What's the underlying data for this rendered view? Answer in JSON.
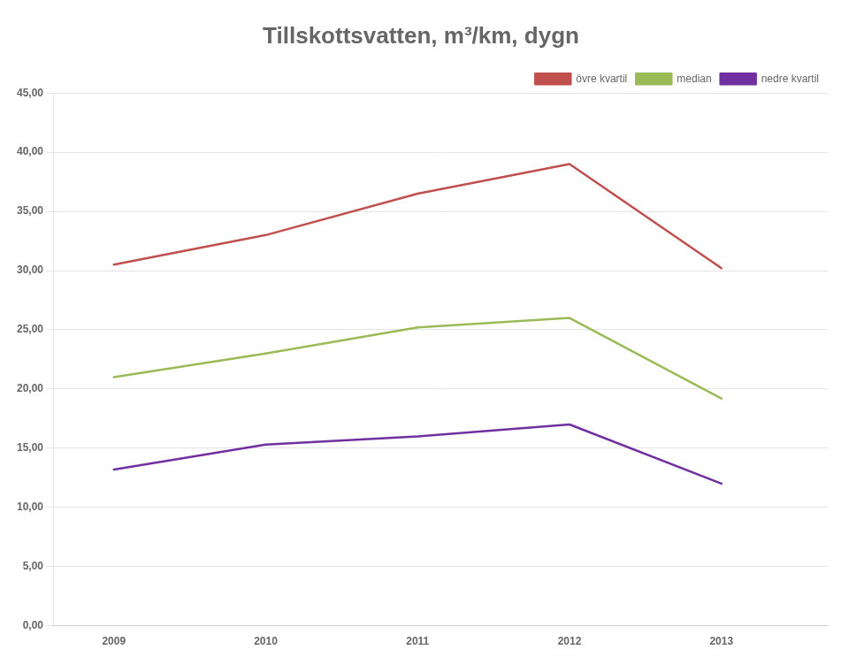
{
  "chart_data": {
    "type": "line",
    "title": "Tillskottsvatten, m³/km, dygn",
    "x": [
      2009,
      2010,
      2011,
      2012,
      2013
    ],
    "series": [
      {
        "name": "övre kvartil",
        "color": "#c0504d",
        "values": [
          30.5,
          33.0,
          36.5,
          39.0,
          30.2
        ]
      },
      {
        "name": "median",
        "color": "#9bbb59",
        "values": [
          21.0,
          23.0,
          25.2,
          26.0,
          19.2
        ]
      },
      {
        "name": "nedre kvartil",
        "color": "#7030a0",
        "values": [
          13.2,
          15.3,
          16.0,
          17.0,
          12.0
        ]
      }
    ],
    "xlim": [
      2008.6,
      2013.7
    ],
    "xticks": [
      2009,
      2010,
      2011,
      2012,
      2013
    ],
    "ylim": [
      0,
      45
    ],
    "yticks": [
      {
        "value": 0,
        "label": "0,00"
      },
      {
        "value": 5,
        "label": "5,00"
      },
      {
        "value": 10,
        "label": "10,00"
      },
      {
        "value": 15,
        "label": "15,00"
      },
      {
        "value": 20,
        "label": "20,00"
      },
      {
        "value": 25,
        "label": "25,00"
      },
      {
        "value": 30,
        "label": "30,00"
      },
      {
        "value": 35,
        "label": "35,00"
      },
      {
        "value": 40,
        "label": "40,00"
      },
      {
        "value": 45,
        "label": "45,00"
      }
    ],
    "grid": "y",
    "legend": "upper right"
  }
}
